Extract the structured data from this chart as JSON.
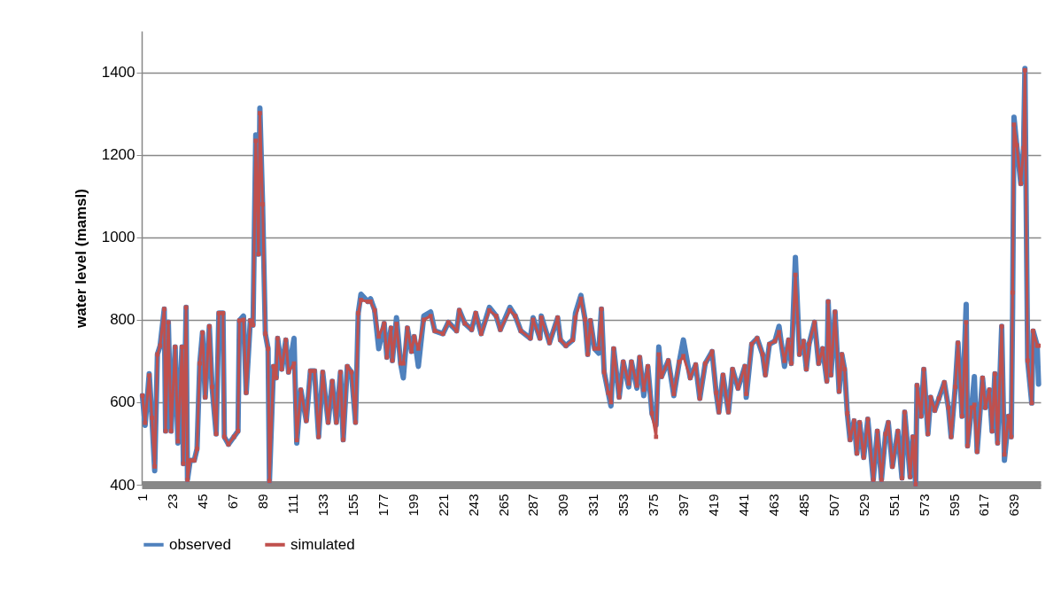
{
  "chart_data": {
    "type": "line",
    "ylabel": "water level (mamsl)",
    "x": [
      1,
      3,
      6,
      8,
      10,
      12,
      14,
      17,
      18,
      20,
      22,
      25,
      27,
      30,
      31,
      33,
      34,
      36,
      39,
      41,
      43,
      45,
      47,
      50,
      52,
      55,
      57,
      60,
      61,
      64,
      68,
      71,
      72,
      75,
      77,
      80,
      82,
      84,
      86,
      87,
      89,
      91,
      93,
      94,
      97,
      99,
      100,
      103,
      106,
      108,
      112,
      114,
      117,
      121,
      124,
      127,
      130,
      133,
      137,
      140,
      143,
      146,
      148,
      151,
      154,
      157,
      159,
      161,
      166,
      168,
      171,
      174,
      178,
      180,
      183,
      184,
      187,
      190,
      192,
      195,
      198,
      200,
      203,
      207,
      212,
      215,
      221,
      225,
      231,
      233,
      237,
      242,
      245,
      249,
      255,
      260,
      263,
      270,
      274,
      278,
      285,
      287,
      292,
      293,
      299,
      305,
      307,
      311,
      316,
      318,
      322,
      325,
      327,
      329,
      332,
      335,
      337,
      339,
      342,
      344,
      346,
      350,
      353,
      357,
      359,
      363,
      365,
      368,
      371,
      374,
      377,
      379,
      381,
      386,
      390,
      394,
      397,
      402,
      406,
      409,
      413,
      418,
      421,
      423,
      426,
      430,
      433,
      437,
      442,
      443,
      447,
      451,
      455,
      457,
      460,
      464,
      467,
      471,
      474,
      476,
      479,
      482,
      485,
      487,
      489,
      493,
      496,
      499,
      502,
      503,
      505,
      508,
      511,
      513,
      515,
      517,
      519,
      522,
      524,
      526,
      529,
      532,
      536,
      539,
      542,
      545,
      547,
      550,
      554,
      557,
      559,
      563,
      565,
      567,
      568,
      571,
      573,
      576,
      578,
      581,
      584,
      588,
      591,
      593,
      596,
      598,
      601,
      604,
      605,
      608,
      610,
      612,
      616,
      618,
      621,
      623,
      625,
      627,
      630,
      632,
      635,
      637,
      638,
      639,
      641,
      644,
      646,
      647,
      649,
      652,
      653,
      656,
      657
    ],
    "series": [
      {
        "name": "observed",
        "color": "#4f81bd",
        "marker": "diamond",
        "values": [
          616,
          544,
          669,
          562,
          434,
          716,
          737,
          826,
          530,
          794,
          530,
          734,
          501,
          734,
          451,
          830,
          412,
          459,
          459,
          487,
          694,
          769,
          612,
          784,
          637,
          523,
          816,
          816,
          516,
          498,
          516,
          530,
          798,
          809,
          623,
          798,
          787,
          1248,
          959,
          1313,
          1080,
          766,
          730,
          409,
          687,
          659,
          755,
          680,
          751,
          673,
          755,
          501,
          630,
          555,
          676,
          676,
          516,
          673,
          551,
          651,
          551,
          673,
          509,
          687,
          673,
          551,
          816,
          862,
          844,
          851,
          823,
          730,
          791,
          709,
          780,
          701,
          805,
          694,
          659,
          780,
          723,
          759,
          687,
          809,
          819,
          773,
          766,
          794,
          773,
          823,
          791,
          776,
          816,
          766,
          830,
          809,
          776,
          830,
          809,
          773,
          755,
          805,
          755,
          809,
          744,
          805,
          751,
          737,
          751,
          816,
          859,
          801,
          716,
          798,
          730,
          719,
          826,
          673,
          623,
          591,
          730,
          612,
          698,
          637,
          698,
          634,
          709,
          616,
          687,
          573,
          544,
          734,
          662,
          701,
          616,
          698,
          751,
          659,
          691,
          609,
          694,
          723,
          623,
          576,
          666,
          576,
          680,
          634,
          687,
          612,
          741,
          755,
          716,
          666,
          741,
          748,
          784,
          687,
          751,
          694,
          951,
          716,
          748,
          680,
          741,
          794,
          694,
          730,
          651,
          844,
          666,
          819,
          626,
          716,
          680,
          573,
          509,
          555,
          476,
          551,
          466,
          559,
          412,
          530,
          412,
          523,
          551,
          444,
          530,
          416,
          576,
          419,
          516,
          401,
          641,
          566,
          680,
          523,
          612,
          580,
          609,
          648,
          587,
          516,
          637,
          744,
          566,
          837,
          494,
          587,
          662,
          480,
          659,
          587,
          630,
          530,
          669,
          501,
          784,
          459,
          566,
          516,
          830,
          1291,
          1223,
          1130,
          1216,
          1409,
          701,
          598,
          773,
          737,
          644
        ]
      },
      {
        "name": "simulated",
        "color": "#c0504d",
        "marker": "square",
        "values": [
          616,
          550,
          665,
          562,
          444,
          716,
          737,
          826,
          530,
          794,
          530,
          734,
          505,
          734,
          451,
          830,
          412,
          459,
          459,
          487,
          694,
          769,
          612,
          784,
          637,
          523,
          816,
          816,
          516,
          498,
          516,
          530,
          798,
          800,
          623,
          798,
          787,
          1234,
          959,
          1301,
          1080,
          766,
          730,
          409,
          687,
          659,
          755,
          680,
          751,
          673,
          694,
          508,
          630,
          555,
          676,
          676,
          516,
          673,
          551,
          651,
          551,
          673,
          509,
          687,
          673,
          551,
          816,
          848,
          844,
          844,
          823,
          759,
          791,
          709,
          780,
          701,
          790,
          694,
          694,
          780,
          723,
          759,
          730,
          800,
          809,
          773,
          766,
          794,
          773,
          823,
          791,
          776,
          816,
          766,
          823,
          809,
          776,
          823,
          809,
          773,
          755,
          800,
          755,
          805,
          744,
          805,
          751,
          737,
          751,
          805,
          851,
          801,
          716,
          798,
          730,
          730,
          826,
          673,
          623,
          600,
          730,
          612,
          698,
          645,
          698,
          640,
          709,
          630,
          687,
          573,
          516,
          716,
          662,
          701,
          620,
          698,
          712,
          659,
          691,
          609,
          694,
          723,
          623,
          576,
          666,
          576,
          680,
          634,
          687,
          620,
          741,
          755,
          716,
          666,
          741,
          748,
          770,
          700,
          751,
          694,
          909,
          716,
          748,
          680,
          741,
          794,
          694,
          730,
          651,
          844,
          666,
          819,
          626,
          716,
          680,
          573,
          509,
          555,
          476,
          551,
          466,
          559,
          412,
          530,
          412,
          523,
          551,
          444,
          530,
          416,
          576,
          419,
          516,
          401,
          641,
          566,
          680,
          523,
          612,
          580,
          609,
          648,
          587,
          516,
          637,
          744,
          566,
          794,
          494,
          587,
          594,
          480,
          659,
          587,
          630,
          530,
          669,
          501,
          784,
          473,
          566,
          516,
          866,
          1273,
          1223,
          1130,
          1216,
          1405,
          701,
          598,
          773,
          737,
          737
        ]
      }
    ],
    "xlim": [
      0.5,
      658.5
    ],
    "xticks": [
      1,
      23,
      45,
      67,
      89,
      111,
      133,
      155,
      177,
      199,
      221,
      243,
      265,
      287,
      309,
      331,
      353,
      375,
      397,
      419,
      441,
      463,
      485,
      507,
      529,
      551,
      573,
      595,
      617,
      639
    ],
    "ylim": [
      400,
      1500
    ],
    "yticks": [
      400,
      600,
      800,
      1000,
      1200,
      1400
    ],
    "grid": "y",
    "legend": "bottom",
    "line_style": "solid"
  }
}
